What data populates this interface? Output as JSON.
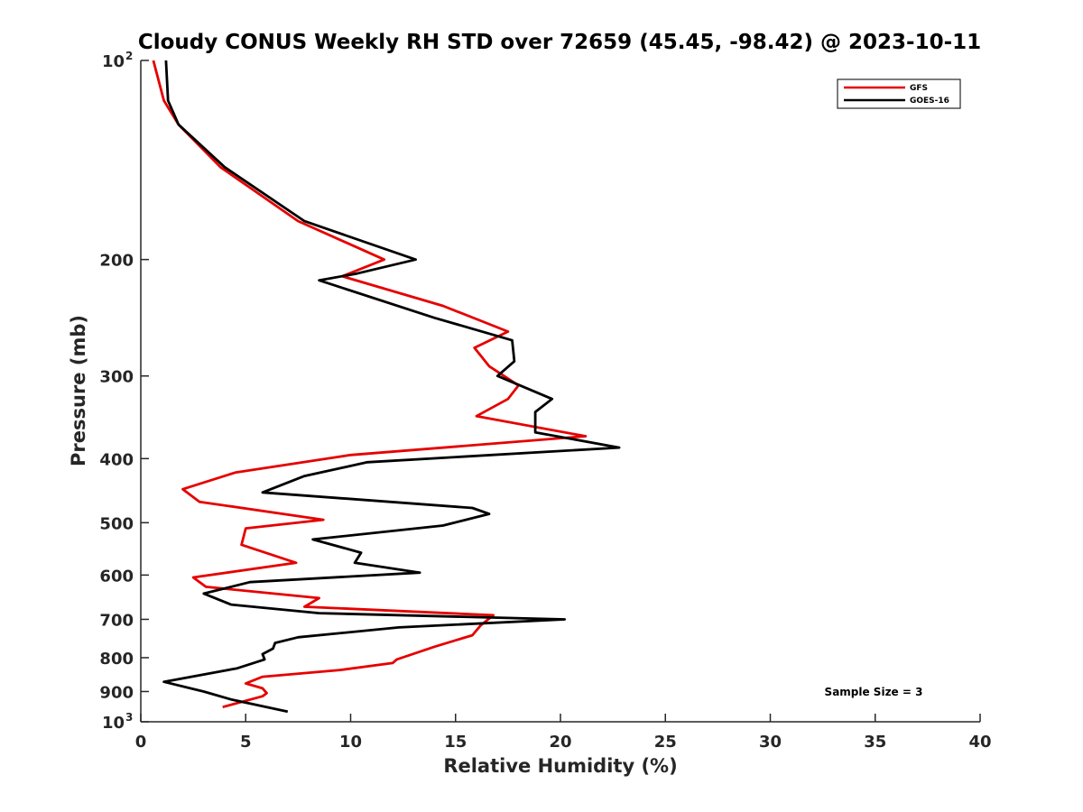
{
  "chart_data": {
    "type": "line",
    "title": "Cloudy CONUS Weekly RH STD over 72659 (45.45, -98.42) @ 2023-10-11",
    "xlabel": "Relative Humidity (%)",
    "ylabel": "Pressure (mb)",
    "xlim": [
      0,
      40
    ],
    "ylim": [
      100,
      1000
    ],
    "y_scale": "log",
    "y_reversed": true,
    "grid": false,
    "legend_position": "top-right",
    "x_ticks": [
      "0",
      "5",
      "10",
      "15",
      "20",
      "25",
      "30",
      "35",
      "40"
    ],
    "y_ticks": [
      {
        "value": 100,
        "base": "10",
        "exp": "2"
      },
      {
        "value": 200,
        "label": "200"
      },
      {
        "value": 300,
        "label": "300"
      },
      {
        "value": 400,
        "label": "400"
      },
      {
        "value": 500,
        "label": "500"
      },
      {
        "value": 600,
        "label": "600"
      },
      {
        "value": 700,
        "label": "700"
      },
      {
        "value": 800,
        "label": "800"
      },
      {
        "value": 900,
        "label": "900"
      },
      {
        "value": 1000,
        "base": "10",
        "exp": "3"
      }
    ],
    "annotation": "Sample Size = 3",
    "series": [
      {
        "name": "GFS",
        "color": "#e60000",
        "points": [
          [
            0.6,
            100
          ],
          [
            1.1,
            115
          ],
          [
            1.8,
            125
          ],
          [
            3.8,
            145
          ],
          [
            7.5,
            175
          ],
          [
            11.6,
            200
          ],
          [
            9.6,
            212
          ],
          [
            14.4,
            235
          ],
          [
            17.5,
            257
          ],
          [
            15.9,
            272
          ],
          [
            16.6,
            290
          ],
          [
            18.0,
            310
          ],
          [
            17.5,
            325
          ],
          [
            16.0,
            345
          ],
          [
            21.2,
            370
          ],
          [
            10.0,
            395
          ],
          [
            4.5,
            420
          ],
          [
            2.0,
            445
          ],
          [
            2.8,
            465
          ],
          [
            8.7,
            495
          ],
          [
            5.0,
            510
          ],
          [
            4.8,
            540
          ],
          [
            7.4,
            575
          ],
          [
            2.5,
            605
          ],
          [
            3.1,
            625
          ],
          [
            8.5,
            650
          ],
          [
            7.8,
            670
          ],
          [
            16.8,
            690
          ],
          [
            16.2,
            715
          ],
          [
            15.8,
            740
          ],
          [
            14.0,
            770
          ],
          [
            12.2,
            805
          ],
          [
            12.0,
            815
          ],
          [
            9.5,
            835
          ],
          [
            5.8,
            855
          ],
          [
            5.0,
            875
          ],
          [
            5.8,
            890
          ],
          [
            6.0,
            905
          ],
          [
            5.8,
            915
          ],
          [
            3.9,
            950
          ]
        ]
      },
      {
        "name": "GOES-16",
        "color": "#000000",
        "points": [
          [
            1.2,
            100
          ],
          [
            1.3,
            115
          ],
          [
            1.8,
            125
          ],
          [
            4.0,
            145
          ],
          [
            7.8,
            175
          ],
          [
            13.1,
            200
          ],
          [
            10.3,
            210
          ],
          [
            8.5,
            215
          ],
          [
            14.0,
            245
          ],
          [
            17.7,
            265
          ],
          [
            17.8,
            285
          ],
          [
            17.0,
            300
          ],
          [
            19.6,
            325
          ],
          [
            18.8,
            340
          ],
          [
            18.8,
            365
          ],
          [
            22.8,
            385
          ],
          [
            10.8,
            405
          ],
          [
            7.8,
            425
          ],
          [
            5.8,
            450
          ],
          [
            15.8,
            475
          ],
          [
            16.6,
            485
          ],
          [
            14.4,
            505
          ],
          [
            8.2,
            530
          ],
          [
            10.5,
            555
          ],
          [
            10.2,
            575
          ],
          [
            13.3,
            595
          ],
          [
            5.2,
            615
          ],
          [
            3.0,
            640
          ],
          [
            4.3,
            665
          ],
          [
            8.5,
            685
          ],
          [
            20.2,
            700
          ],
          [
            12.3,
            720
          ],
          [
            7.5,
            745
          ],
          [
            6.4,
            760
          ],
          [
            6.3,
            775
          ],
          [
            5.8,
            790
          ],
          [
            5.9,
            805
          ],
          [
            4.6,
            830
          ],
          [
            1.1,
            870
          ],
          [
            3.0,
            900
          ],
          [
            4.3,
            925
          ],
          [
            7.0,
            965
          ]
        ]
      }
    ]
  }
}
